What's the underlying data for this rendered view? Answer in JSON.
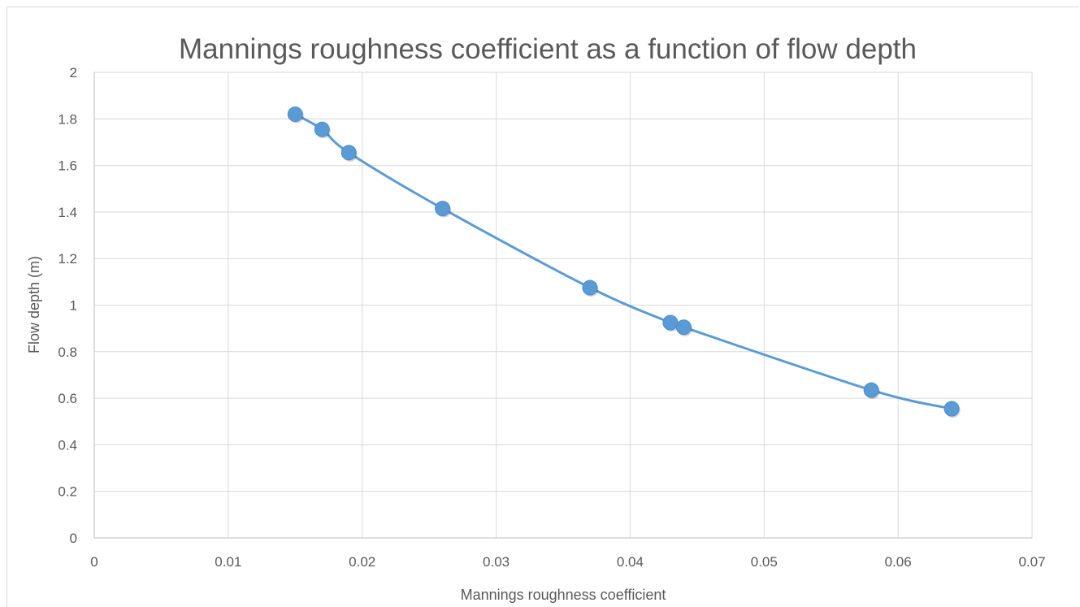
{
  "chart_data": {
    "type": "scatter",
    "title": "Mannings roughness coefficient as a function of flow depth",
    "xlabel": "Mannings roughness coefficient",
    "ylabel": "Flow depth (m)",
    "xlim": [
      0,
      0.07
    ],
    "ylim": [
      0,
      2
    ],
    "xticks": [
      "0",
      "0.01",
      "0.02",
      "0.03",
      "0.04",
      "0.05",
      "0.06",
      "0.07"
    ],
    "yticks": [
      "0",
      "0.2",
      "0.4",
      "0.6",
      "0.8",
      "1",
      "1.2",
      "1.4",
      "1.6",
      "1.8",
      "2"
    ],
    "grid": true,
    "legend": "none",
    "series": [
      {
        "color": "#5b9bd5",
        "smooth": true,
        "markers": true,
        "x": [
          0.015,
          0.017,
          0.019,
          0.026,
          0.037,
          0.043,
          0.044,
          0.058,
          0.064
        ],
        "y": [
          1.82,
          1.755,
          1.655,
          1.415,
          1.075,
          0.925,
          0.905,
          0.635,
          0.555
        ]
      }
    ]
  }
}
